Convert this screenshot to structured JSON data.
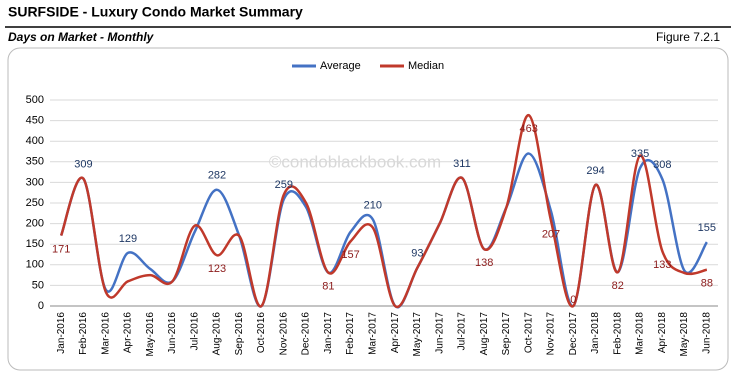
{
  "header": {
    "title": "SURFSIDE - Luxury Condo Market Summary",
    "subtitle": "Days on Market - Monthly",
    "figure": "Figure 7.2.1"
  },
  "chart_data": {
    "type": "line",
    "watermark": "©condoblackbook.com",
    "categories": [
      "Jan-2016",
      "Feb-2016",
      "Mar-2016",
      "Apr-2016",
      "May-2016",
      "Jun-2016",
      "Jul-2016",
      "Aug-2016",
      "Sep-2016",
      "Oct-2016",
      "Nov-2016",
      "Dec-2016",
      "Jan-2017",
      "Feb-2017",
      "Mar-2017",
      "Apr-2017",
      "May-2017",
      "Jun-2017",
      "Jul-2017",
      "Aug-2017",
      "Sep-2017",
      "Oct-2017",
      "Nov-2017",
      "Dec-2017",
      "Jan-2018",
      "Feb-2018",
      "Mar-2018",
      "Apr-2018",
      "May-2018",
      "Jun-2018"
    ],
    "series": [
      {
        "name": "Average",
        "color": "#4472c4",
        "values": [
          171,
          309,
          40,
          129,
          90,
          60,
          180,
          282,
          170,
          0,
          259,
          240,
          81,
          180,
          210,
          0,
          93,
          200,
          311,
          138,
          240,
          370,
          230,
          0,
          294,
          82,
          335,
          308,
          85,
          155
        ],
        "value_labels": [
          null,
          "309",
          null,
          "129",
          null,
          null,
          null,
          "282",
          null,
          null,
          "259",
          null,
          null,
          null,
          "210",
          null,
          "93",
          null,
          "311",
          null,
          null,
          null,
          null,
          null,
          "294",
          null,
          "335",
          "308",
          null,
          "155"
        ]
      },
      {
        "name": "Median",
        "color": "#c0392b",
        "values": [
          171,
          309,
          35,
          60,
          75,
          60,
          195,
          123,
          170,
          0,
          270,
          250,
          81,
          157,
          190,
          0,
          93,
          200,
          311,
          138,
          240,
          463,
          207,
          0,
          294,
          82,
          365,
          133,
          80,
          88
        ],
        "value_labels": [
          "171",
          null,
          null,
          null,
          null,
          null,
          null,
          "123",
          null,
          null,
          null,
          null,
          "81",
          "157",
          null,
          null,
          null,
          null,
          null,
          "138",
          null,
          "463",
          "207",
          "0",
          null,
          "82",
          null,
          "133",
          null,
          "88"
        ]
      }
    ],
    "ylim": [
      0,
      500
    ],
    "yticks": [
      0,
      50,
      100,
      150,
      200,
      250,
      300,
      350,
      400,
      450,
      500
    ],
    "grid": true
  }
}
